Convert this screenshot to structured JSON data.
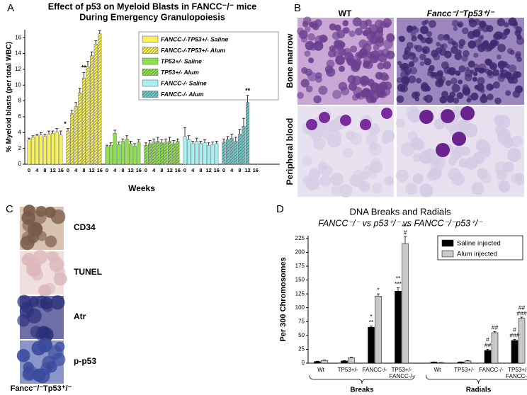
{
  "panels": [
    "A",
    "B",
    "C",
    "D"
  ],
  "chart_data": [
    {
      "type": "bar",
      "title": [
        "Effect of p53 on Myeloid Blasts in FANCC⁻/⁻ mice",
        "During Emergency Granulopoiesis"
      ],
      "y_label": "% Myeloid blasts (per total WBC)",
      "x_label": "Weeks",
      "xticks": [
        0,
        4,
        8,
        12,
        16
      ],
      "ylim": [
        0,
        17
      ],
      "yticks": [
        0,
        2,
        4,
        6,
        8,
        10,
        12,
        14,
        16
      ],
      "legend": "upper right",
      "series": [
        {
          "name": "FANCC-/-TP53+/- Saline",
          "color": "#f7f15a",
          "hatch": false,
          "x": [
            0,
            2,
            4,
            6,
            8,
            10,
            12,
            14,
            16
          ],
          "values": [
            3.1,
            3.4,
            3.6,
            3.7,
            3.5,
            3.8,
            3.9,
            4.1,
            3.7
          ],
          "errors": [
            0.2,
            0.2,
            0.2,
            0.3,
            0.3,
            0.4,
            0.3,
            0.4,
            0.5
          ]
        },
        {
          "name": "FANCC-/-TP53+/- Alum",
          "color": "#f7f15a",
          "hatch": true,
          "x": [
            0,
            2,
            4,
            6,
            8,
            10,
            12,
            14,
            16
          ],
          "values": [
            4.2,
            6.4,
            7.3,
            9.0,
            10.9,
            12.4,
            13.7,
            15.2,
            16.5
          ],
          "errors": [
            0.3,
            0.4,
            0.5,
            0.6,
            0.7,
            0.6,
            0.5,
            0.4,
            0.4
          ]
        },
        {
          "name": "TP53+/- Saline",
          "color": "#8ee04e",
          "hatch": false,
          "x": [
            0,
            2,
            4,
            6,
            8,
            10,
            12,
            14,
            16
          ],
          "values": [
            2.2,
            2.4,
            3.9,
            2.5,
            2.9,
            3.2,
            2.6,
            2.3,
            2.8
          ],
          "errors": [
            0.2,
            0.3,
            0.4,
            0.3,
            0.3,
            0.4,
            0.3,
            0.3,
            0.3
          ]
        },
        {
          "name": "TP53+/- Alum",
          "color": "#8ee04e",
          "hatch": true,
          "x": [
            0,
            2,
            4,
            6,
            8,
            10,
            12,
            14,
            16
          ],
          "values": [
            2.4,
            2.6,
            2.8,
            2.9,
            2.7,
            2.8,
            2.9,
            2.6,
            2.9
          ],
          "errors": [
            0.3,
            0.4,
            0.4,
            0.5,
            0.4,
            0.4,
            0.5,
            0.4,
            0.3
          ]
        },
        {
          "name": "FANCC-/- Saline",
          "color": "#a6f1f1",
          "hatch": false,
          "x": [
            0,
            2,
            4,
            6,
            8,
            10,
            12,
            14,
            16
          ],
          "values": [
            3.5,
            3.1,
            2.6,
            2.9,
            2.6,
            2.7,
            2.4,
            2.5,
            2.6
          ],
          "errors": [
            1.1,
            0.5,
            0.3,
            0.4,
            0.3,
            0.4,
            0.3,
            0.3,
            0.3
          ]
        },
        {
          "name": "FANCC-/- Alum",
          "color": "#6fc9c9",
          "hatch": true,
          "x": [
            0,
            2,
            4,
            6,
            8,
            10,
            12
          ],
          "values": [
            2.8,
            3.1,
            3.3,
            2.9,
            3.8,
            4.8,
            7.8
          ],
          "errors": [
            0.4,
            0.4,
            0.5,
            0.5,
            0.6,
            1.0,
            0.9
          ]
        }
      ],
      "annotations": [
        {
          "text": "*",
          "series": 1,
          "index": 0
        },
        {
          "text": "**",
          "series": 1,
          "index": 4
        },
        {
          "text": "**",
          "series": 5,
          "index": 6
        }
      ]
    },
    {
      "type": "bar",
      "title": "DNA Breaks and Radials",
      "subtitle": "FANCC⁻/⁻ vs p53⁺/⁻ vs FANCC⁻/⁻p53⁺/⁻",
      "y_label": "Per 300 Chromosomes",
      "categories": [
        "Wt",
        "TP53+/-",
        "FANCC-/-",
        "TP53+/-\nFANCC-/-",
        "Wt",
        "TP53+/-",
        "FANCC-/-",
        "TP53+/-\nFANCC-/-"
      ],
      "groups": [
        "Breaks",
        "Radials"
      ],
      "ylim": [
        0,
        230
      ],
      "yticks": [
        0,
        25,
        50,
        75,
        100,
        125,
        150,
        175,
        200,
        225
      ],
      "legend": "upper right",
      "series": [
        {
          "name": "Saline injected",
          "color": "#000000",
          "values": [
            3,
            4,
            65,
            130,
            2,
            2,
            23,
            41
          ],
          "errors": [
            0.5,
            0.5,
            2,
            6,
            0.3,
            0.3,
            2,
            2
          ]
        },
        {
          "name": "Alum injected",
          "color": "#c8c8c8",
          "values": [
            5,
            10,
            121,
            216,
            1,
            4,
            55,
            81
          ],
          "errors": [
            0.5,
            1,
            4,
            13,
            0.2,
            0.5,
            2,
            2
          ]
        }
      ],
      "annotations": [
        {
          "series": 0,
          "index": 2,
          "lines": [
            "*",
            "**"
          ]
        },
        {
          "series": 1,
          "index": 2,
          "lines": [
            "*"
          ]
        },
        {
          "series": 0,
          "index": 3,
          "lines": [
            "**",
            "***"
          ]
        },
        {
          "series": 1,
          "index": 3,
          "lines": [
            "***",
            "#"
          ]
        },
        {
          "series": 0,
          "index": 6,
          "lines": [
            "#",
            "##"
          ]
        },
        {
          "series": 1,
          "index": 6,
          "lines": [
            "##"
          ]
        },
        {
          "series": 0,
          "index": 7,
          "lines": [
            "#",
            "###"
          ]
        },
        {
          "series": 1,
          "index": 7,
          "lines": [
            "##",
            "###"
          ]
        }
      ]
    }
  ],
  "panel_b": {
    "columns": [
      "WT",
      "Fancc⁻/⁻Tp53⁺/⁻"
    ],
    "rows": [
      "Bone marrow",
      "Peripheral blood"
    ]
  },
  "panel_c": {
    "stains": [
      "CD34",
      "TUNEL",
      "Atr",
      "p-p53"
    ],
    "genotype": "Fancc⁻/⁻Tp53⁺/⁻"
  }
}
